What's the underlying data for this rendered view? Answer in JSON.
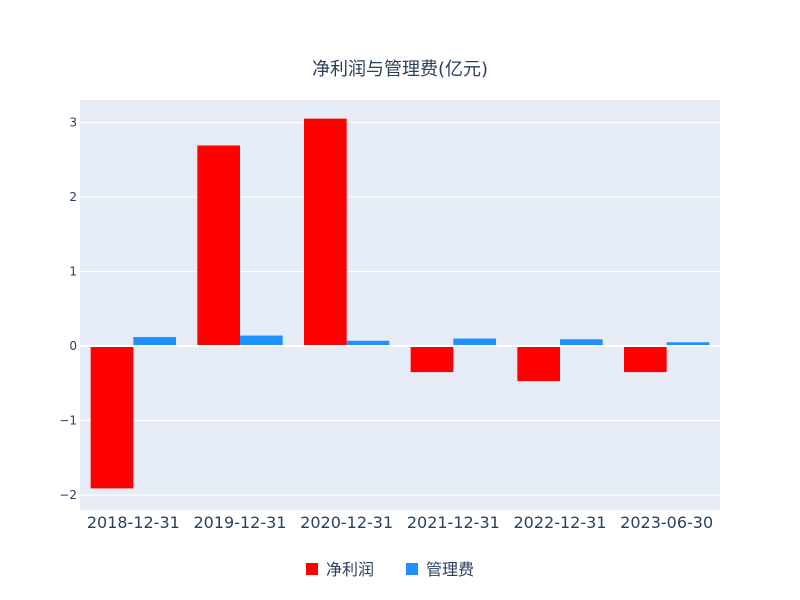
{
  "chart_data": {
    "type": "bar",
    "title": "净利润与管理费(亿元)",
    "xlabel": "",
    "ylabel": "",
    "categories": [
      "2018-12-31",
      "2019-12-31",
      "2020-12-31",
      "2021-12-31",
      "2022-12-31",
      "2023-06-30"
    ],
    "series": [
      {
        "name": "净利润",
        "color": "#ff0000",
        "values": [
          -1.91,
          2.69,
          3.05,
          -0.35,
          -0.47,
          -0.35
        ]
      },
      {
        "name": "管理费",
        "color": "#1e90ff",
        "values": [
          0.12,
          0.14,
          0.07,
          0.1,
          0.09,
          0.05
        ]
      }
    ],
    "ylim": [
      -2.2,
      3.3
    ],
    "yticks": [
      {
        "value": -2,
        "label": "−2"
      },
      {
        "value": -1,
        "label": "−1"
      },
      {
        "value": 0,
        "label": "0"
      },
      {
        "value": 1,
        "label": "1"
      },
      {
        "value": 2,
        "label": "2"
      },
      {
        "value": 3,
        "label": "3"
      }
    ],
    "grid": true,
    "legend_position": "bottom-center",
    "plot_background": "#e5ecf6"
  }
}
